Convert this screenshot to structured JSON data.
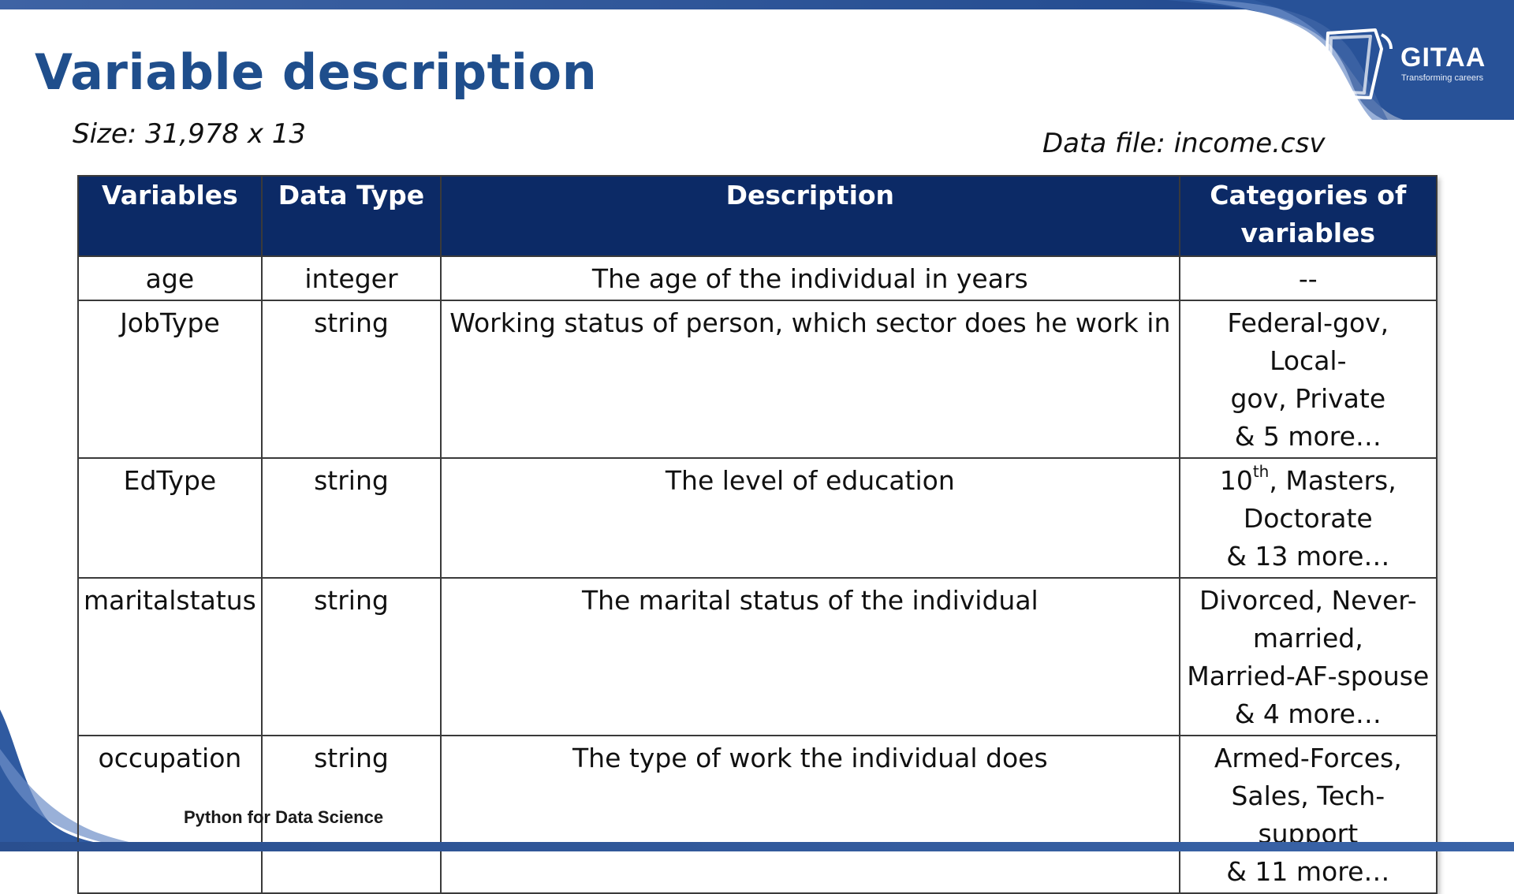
{
  "slide": {
    "title": "Variable description",
    "size_label": "Size: 31,978 x 13",
    "datafile_label": "Data file: income.csv",
    "footer": "Python for Data Science"
  },
  "logo": {
    "name": "GITAA",
    "tagline": "Transforming careers"
  },
  "colors": {
    "title": "#1f4e8c",
    "header_bg": "#0c2a66",
    "band": "#274f93"
  },
  "table": {
    "headers": [
      "Variables",
      "Data Type",
      "Description",
      "Categories of variables"
    ],
    "rows": [
      {
        "variable": "age",
        "type": "integer",
        "description": "The age of the individual in years",
        "categories": [
          "--"
        ]
      },
      {
        "variable": "JobType",
        "type": "string",
        "description": "Working status of person, which sector does he work in",
        "categories": [
          "Federal-gov, Local-",
          "gov, Private",
          "& 5 more…"
        ]
      },
      {
        "variable": "EdType",
        "type": "string",
        "description": "The level of education",
        "categories_prefix": "10",
        "categories_sup": "th",
        "categories_suffix": ", Masters,",
        "categories": [
          "Doctorate",
          "& 13 more…"
        ]
      },
      {
        "variable": "maritalstatus",
        "type": "string",
        "description": "The marital status of the individual",
        "categories": [
          "Divorced, Never-",
          "married,",
          "Married-AF-spouse",
          "& 4 more…"
        ]
      },
      {
        "variable": "occupation",
        "type": "string",
        "description": "The type of work the individual does",
        "categories": [
          "Armed-Forces,",
          "Sales, Tech-support",
          "& 11 more…"
        ]
      }
    ]
  }
}
